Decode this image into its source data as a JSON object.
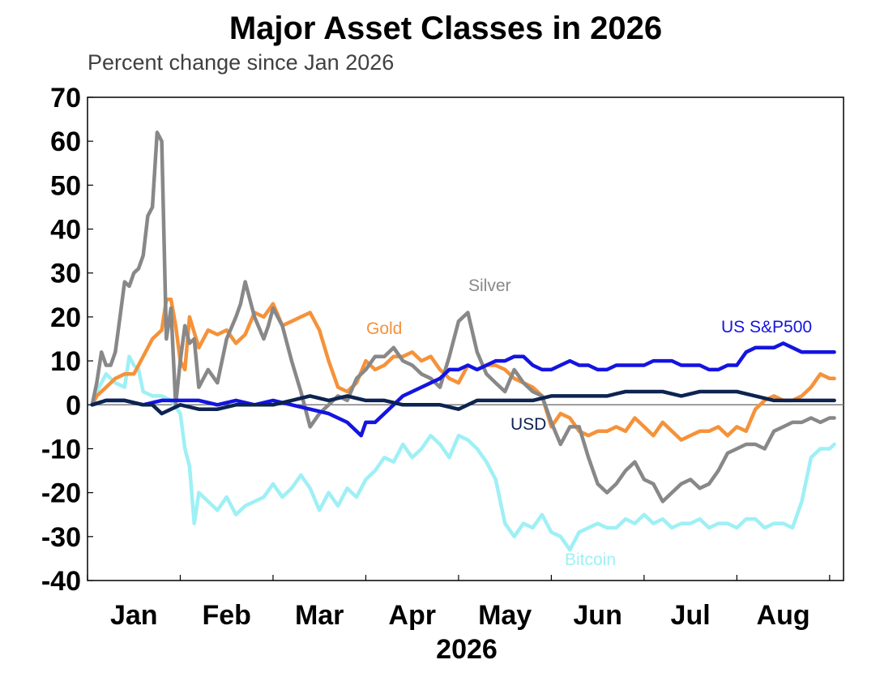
{
  "chart_data": {
    "type": "line",
    "title": "Major Asset Classes in 2026",
    "subtitle": "Percent change since Jan 2026",
    "xlabel": "2026",
    "ylabel": "",
    "ylim": [
      -40,
      70
    ],
    "yticks": [
      70,
      60,
      50,
      40,
      30,
      20,
      10,
      0,
      -10,
      -20,
      -30,
      -40
    ],
    "xlim": [
      0,
      8.15
    ],
    "month_labels": [
      "Jan",
      "Feb",
      "Mar",
      "Apr",
      "May",
      "Jun",
      "Jul",
      "Aug"
    ],
    "grid": false,
    "legend": "inline labels",
    "series": [
      {
        "name": "Bitcoin",
        "color": "#9ef0f5",
        "x": [
          0.05,
          0.1,
          0.2,
          0.3,
          0.4,
          0.45,
          0.5,
          0.55,
          0.6,
          0.7,
          0.8,
          0.9,
          1.0,
          1.05,
          1.1,
          1.15,
          1.2,
          1.3,
          1.4,
          1.5,
          1.6,
          1.7,
          1.8,
          1.9,
          2.0,
          2.1,
          2.2,
          2.3,
          2.4,
          2.5,
          2.6,
          2.7,
          2.8,
          2.9,
          3.0,
          3.1,
          3.2,
          3.3,
          3.4,
          3.5,
          3.6,
          3.7,
          3.8,
          3.9,
          4.0,
          4.1,
          4.2,
          4.3,
          4.4,
          4.5,
          4.6,
          4.7,
          4.8,
          4.9,
          5.0,
          5.1,
          5.2,
          5.3,
          5.4,
          5.5,
          5.6,
          5.7,
          5.8,
          5.9,
          6.0,
          6.1,
          6.2,
          6.3,
          6.4,
          6.5,
          6.6,
          6.7,
          6.8,
          6.9,
          7.0,
          7.1,
          7.2,
          7.3,
          7.4,
          7.5,
          7.6,
          7.7,
          7.8,
          7.9,
          8.0,
          8.05
        ],
        "values": [
          0,
          3,
          7,
          5,
          4,
          11,
          9,
          8,
          3,
          2,
          2,
          1,
          -2,
          -10,
          -14,
          -27,
          -20,
          -22,
          -24,
          -21,
          -25,
          -23,
          -22,
          -21,
          -18,
          -21,
          -19,
          -16,
          -19,
          -24,
          -20,
          -23,
          -19,
          -21,
          -17,
          -15,
          -12,
          -13,
          -9,
          -12,
          -10,
          -7,
          -9,
          -12,
          -7,
          -8,
          -10,
          -13,
          -17,
          -27,
          -30,
          -27,
          -28,
          -25,
          -29,
          -30,
          -33,
          -29,
          -28,
          -27,
          -28,
          -28,
          -26,
          -27,
          -25,
          -27,
          -26,
          -28,
          -27,
          -27,
          -26,
          -28,
          -27,
          -27,
          -28,
          -26,
          -26,
          -28,
          -27,
          -27,
          -28,
          -22,
          -12,
          -10,
          -10,
          -9
        ]
      },
      {
        "name": "Gold",
        "color": "#f5923a",
        "x": [
          0.05,
          0.1,
          0.2,
          0.3,
          0.4,
          0.5,
          0.6,
          0.7,
          0.8,
          0.85,
          0.9,
          0.95,
          1.0,
          1.05,
          1.1,
          1.2,
          1.3,
          1.4,
          1.5,
          1.6,
          1.7,
          1.8,
          1.9,
          2.0,
          2.1,
          2.2,
          2.3,
          2.4,
          2.5,
          2.6,
          2.7,
          2.8,
          2.9,
          3.0,
          3.1,
          3.2,
          3.3,
          3.4,
          3.5,
          3.6,
          3.7,
          3.8,
          3.9,
          4.0,
          4.1,
          4.2,
          4.3,
          4.4,
          4.5,
          4.6,
          4.7,
          4.8,
          4.9,
          5.0,
          5.1,
          5.2,
          5.3,
          5.4,
          5.5,
          5.6,
          5.7,
          5.8,
          5.9,
          6.0,
          6.1,
          6.2,
          6.3,
          6.4,
          6.5,
          6.6,
          6.7,
          6.8,
          6.9,
          7.0,
          7.1,
          7.2,
          7.3,
          7.4,
          7.5,
          7.6,
          7.7,
          7.8,
          7.9,
          8.0,
          8.05
        ],
        "values": [
          0,
          2,
          4,
          6,
          7,
          7,
          11,
          15,
          17,
          24,
          24,
          18,
          10,
          8,
          20,
          13,
          17,
          16,
          17,
          14,
          16,
          21,
          20,
          23,
          18,
          19,
          20,
          21,
          17,
          10,
          4,
          3,
          5,
          10,
          8,
          9,
          11,
          11,
          12,
          10,
          11,
          8,
          6,
          5,
          9,
          8,
          9,
          9,
          8,
          6,
          5,
          4,
          2,
          -5,
          -2,
          -3,
          -6,
          -7,
          -6,
          -6,
          -5,
          -6,
          -3,
          -5,
          -7,
          -4,
          -6,
          -8,
          -7,
          -6,
          -6,
          -5,
          -7,
          -5,
          -6,
          -1,
          1,
          2,
          1,
          1,
          2,
          4,
          7,
          6,
          6
        ]
      },
      {
        "name": "Silver",
        "color": "#888888",
        "x": [
          0.05,
          0.1,
          0.15,
          0.2,
          0.25,
          0.3,
          0.35,
          0.4,
          0.45,
          0.5,
          0.55,
          0.6,
          0.65,
          0.7,
          0.75,
          0.8,
          0.85,
          0.9,
          0.95,
          1.0,
          1.05,
          1.1,
          1.15,
          1.2,
          1.3,
          1.4,
          1.5,
          1.6,
          1.65,
          1.7,
          1.8,
          1.9,
          1.95,
          2.0,
          2.1,
          2.2,
          2.3,
          2.4,
          2.5,
          2.6,
          2.7,
          2.8,
          2.9,
          3.0,
          3.1,
          3.2,
          3.3,
          3.4,
          3.5,
          3.6,
          3.7,
          3.8,
          3.9,
          4.0,
          4.1,
          4.2,
          4.3,
          4.4,
          4.5,
          4.6,
          4.7,
          4.8,
          4.9,
          5.0,
          5.1,
          5.2,
          5.3,
          5.4,
          5.5,
          5.6,
          5.7,
          5.8,
          5.9,
          6.0,
          6.1,
          6.2,
          6.3,
          6.4,
          6.5,
          6.6,
          6.7,
          6.8,
          6.9,
          7.0,
          7.1,
          7.2,
          7.3,
          7.4,
          7.5,
          7.6,
          7.7,
          7.8,
          7.9,
          8.0,
          8.05
        ],
        "values": [
          0,
          5,
          12,
          9,
          9,
          12,
          20,
          28,
          27,
          30,
          31,
          34,
          43,
          45,
          62,
          60,
          15,
          22,
          0,
          10,
          18,
          14,
          15,
          4,
          8,
          5,
          15,
          20,
          23,
          28,
          20,
          15,
          18,
          22,
          18,
          10,
          3,
          -5,
          -2,
          0,
          2,
          1,
          6,
          8,
          11,
          11,
          13,
          10,
          9,
          7,
          6,
          4,
          11,
          19,
          21,
          12,
          7,
          5,
          3,
          8,
          5,
          3,
          2,
          -4,
          -9,
          -5,
          -5,
          -12,
          -18,
          -20,
          -18,
          -15,
          -13,
          -17,
          -18,
          -22,
          -20,
          -18,
          -17,
          -19,
          -18,
          -15,
          -11,
          -10,
          -9,
          -9,
          -10,
          -6,
          -5,
          -4,
          -4,
          -3,
          -4,
          -3,
          -3
        ]
      },
      {
        "name": "US S&P500",
        "color": "#1414e0",
        "x": [
          0.05,
          0.2,
          0.4,
          0.6,
          0.8,
          1.0,
          1.2,
          1.4,
          1.6,
          1.8,
          2.0,
          2.2,
          2.4,
          2.6,
          2.8,
          2.95,
          3.0,
          3.1,
          3.2,
          3.4,
          3.5,
          3.6,
          3.7,
          3.8,
          3.9,
          4.0,
          4.1,
          4.2,
          4.3,
          4.4,
          4.5,
          4.6,
          4.7,
          4.8,
          4.9,
          5.0,
          5.1,
          5.2,
          5.3,
          5.4,
          5.5,
          5.6,
          5.7,
          5.8,
          5.9,
          6.0,
          6.1,
          6.2,
          6.3,
          6.4,
          6.5,
          6.6,
          6.7,
          6.8,
          6.9,
          7.0,
          7.1,
          7.2,
          7.3,
          7.4,
          7.5,
          7.6,
          7.7,
          7.8,
          7.9,
          8.0,
          8.05
        ],
        "values": [
          0,
          1,
          1,
          0,
          1,
          1,
          1,
          0,
          1,
          0,
          1,
          0,
          -1,
          -2,
          -4,
          -7,
          -4,
          -4,
          -2,
          2,
          3,
          4,
          5,
          6,
          8,
          8,
          9,
          8,
          9,
          10,
          10,
          11,
          11,
          9,
          8,
          8,
          9,
          10,
          9,
          9,
          8,
          8,
          9,
          9,
          9,
          9,
          10,
          10,
          10,
          9,
          9,
          9,
          8,
          8,
          9,
          9,
          12,
          13,
          13,
          13,
          14,
          13,
          12,
          12,
          12,
          12,
          12
        ]
      },
      {
        "name": "USD",
        "color": "#0d2350",
        "x": [
          0.05,
          0.2,
          0.4,
          0.6,
          0.7,
          0.8,
          0.9,
          1.0,
          1.2,
          1.4,
          1.6,
          1.8,
          2.0,
          2.2,
          2.4,
          2.6,
          2.8,
          3.0,
          3.2,
          3.4,
          3.6,
          3.8,
          4.0,
          4.2,
          4.4,
          4.6,
          4.8,
          5.0,
          5.2,
          5.4,
          5.6,
          5.8,
          6.0,
          6.2,
          6.4,
          6.6,
          6.8,
          7.0,
          7.2,
          7.4,
          7.6,
          7.8,
          8.0,
          8.05
        ],
        "values": [
          0,
          1,
          1,
          0,
          0,
          -2,
          -1,
          0,
          -1,
          -1,
          0,
          0,
          0,
          1,
          2,
          1,
          2,
          1,
          1,
          0,
          0,
          0,
          -1,
          1,
          1,
          1,
          1,
          2,
          2,
          2,
          2,
          3,
          3,
          3,
          2,
          3,
          3,
          3,
          2,
          1,
          1,
          1,
          1,
          1
        ]
      }
    ],
    "annotations": [
      {
        "text": "Silver",
        "color": "#888888"
      },
      {
        "text": "Gold",
        "color": "#f5923a"
      },
      {
        "text": "US S&P500",
        "color": "#1414e0"
      },
      {
        "text": "USD",
        "color": "#0d2350"
      },
      {
        "text": "Bitcoin",
        "color": "#9ef0f5"
      }
    ]
  }
}
